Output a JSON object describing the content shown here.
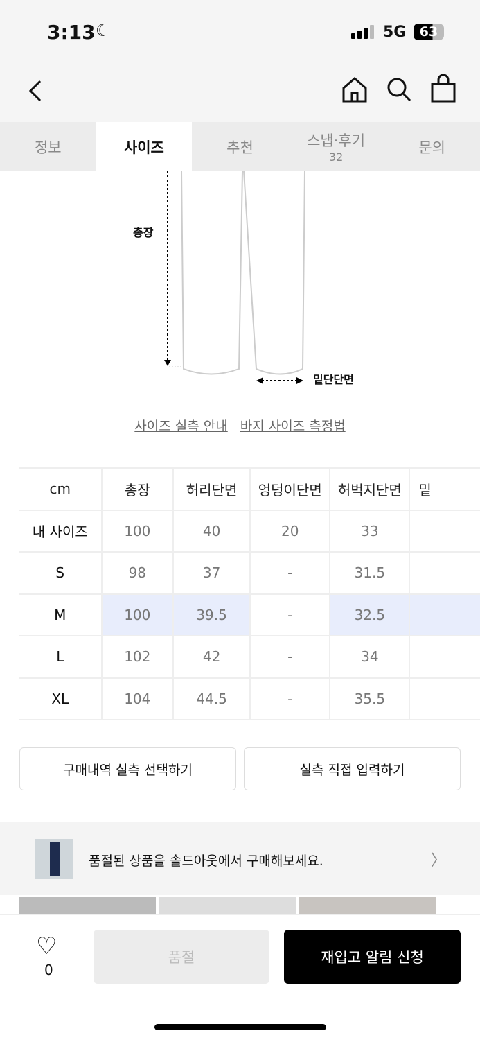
{
  "status_bar": {
    "time": "3:13",
    "network": "5G",
    "battery": "63"
  },
  "tabs": [
    {
      "label": "정보"
    },
    {
      "label": "사이즈",
      "active": true
    },
    {
      "label": "추천"
    },
    {
      "label": "스냅·후기",
      "count": "32"
    },
    {
      "label": "문의"
    }
  ],
  "diagram": {
    "length_label": "총장",
    "hem_label": "밑단단면"
  },
  "links": {
    "guide": "사이즈 실측 안내",
    "measure": "바지 사이즈 측정법"
  },
  "size_table": {
    "headers": [
      "cm",
      "총장",
      "허리단면",
      "엉덩이단면",
      "허벅지단면",
      "밑"
    ],
    "rows": [
      [
        "내 사이즈",
        "100",
        "40",
        "20",
        "33",
        ""
      ],
      [
        "S",
        "98",
        "37",
        "-",
        "31.5",
        ""
      ],
      [
        "M",
        "100",
        "39.5",
        "-",
        "32.5",
        ""
      ],
      [
        "L",
        "102",
        "42",
        "-",
        "34",
        ""
      ],
      [
        "XL",
        "104",
        "44.5",
        "-",
        "35.5",
        ""
      ]
    ],
    "highlight_color": "#e8edfc"
  },
  "actions": {
    "purchase_history": "구매내역 실측 선택하기",
    "manual_input": "실측 직접 입력하기"
  },
  "banner": {
    "text": "품절된 상품을 솔드아웃에서 구매해보세요."
  },
  "bottom_bar": {
    "like_count": "0",
    "sold_out": "품절",
    "restock": "재입고 알림 신청"
  }
}
